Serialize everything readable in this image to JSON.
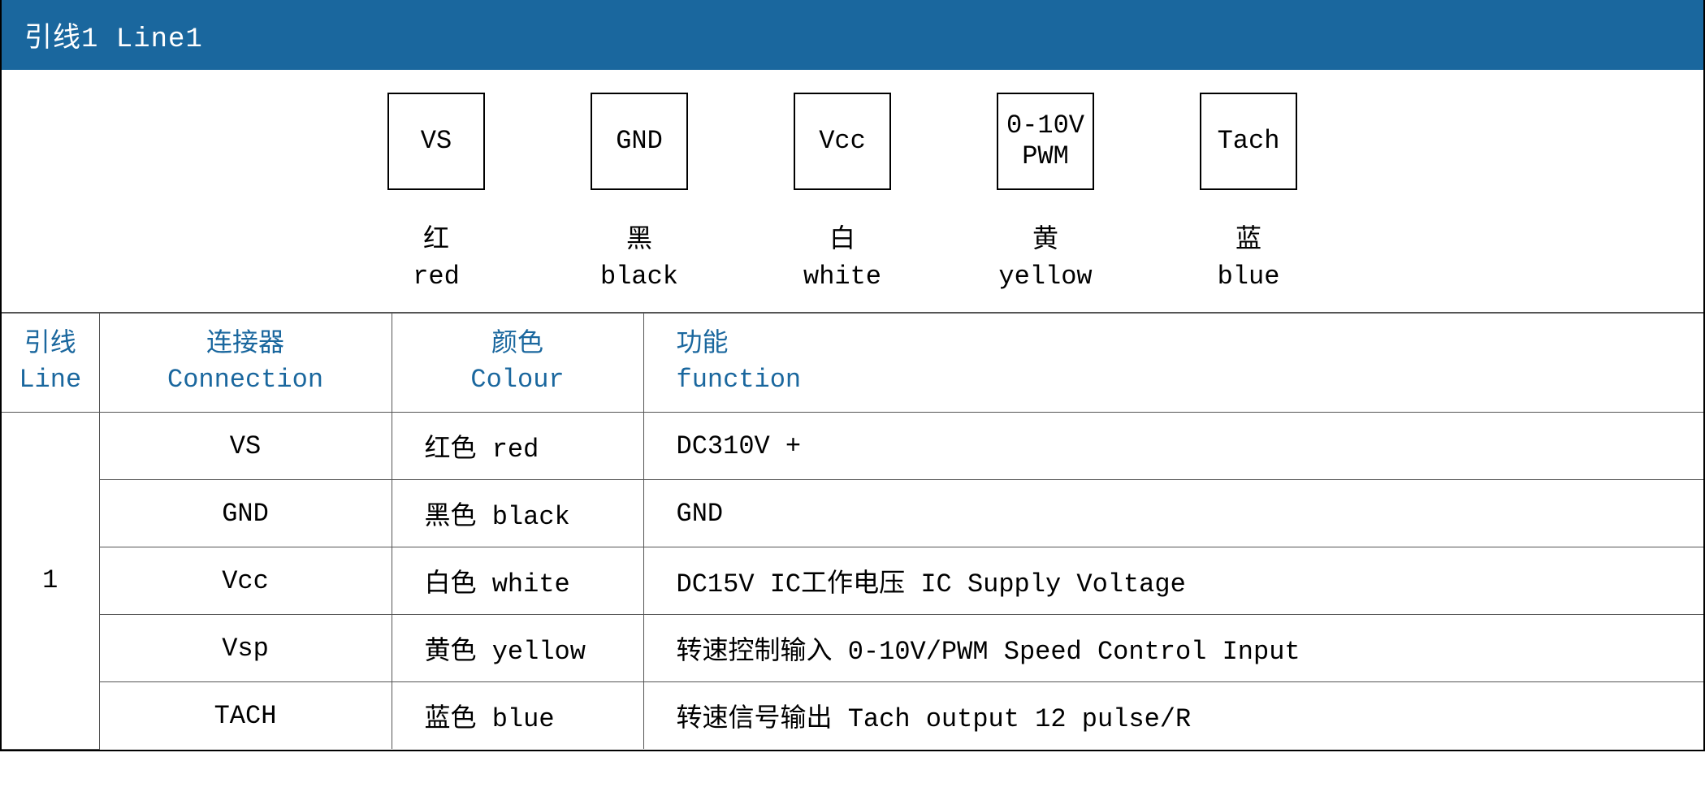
{
  "header": {
    "title": "引线1 Line1"
  },
  "colors": {
    "header_bg": "#1a679e",
    "header_text": "#ffffff",
    "th_text": "#1a679e",
    "border": "#555555"
  },
  "pins": [
    {
      "box": "VS",
      "box2": "",
      "label_cn": "红",
      "label_en": "red"
    },
    {
      "box": "GND",
      "box2": "",
      "label_cn": "黑",
      "label_en": "black"
    },
    {
      "box": "Vcc",
      "box2": "",
      "label_cn": "白",
      "label_en": "white"
    },
    {
      "box": "0-10V",
      "box2": "PWM",
      "label_cn": "黄",
      "label_en": "yellow"
    },
    {
      "box": "Tach",
      "box2": "",
      "label_cn": "蓝",
      "label_en": "blue"
    }
  ],
  "table": {
    "headers": {
      "line_cn": "引线",
      "line_en": "Line",
      "conn_cn": "连接器",
      "conn_en": "Connection",
      "color_cn": "颜色",
      "color_en": "Colour",
      "func_cn": "功能",
      "func_en": "function"
    },
    "line_number": "1",
    "rows": [
      {
        "conn": "VS",
        "color": "红色 red",
        "func": "DC310V +"
      },
      {
        "conn": "GND",
        "color": "黑色 black",
        "func": "GND"
      },
      {
        "conn": "Vcc",
        "color": "白色 white",
        "func": "DC15V  IC工作电压  IC Supply Voltage"
      },
      {
        "conn": "Vsp",
        "color": "黄色 yellow",
        "func": "转速控制输入 0-10V/PWM Speed Control Input"
      },
      {
        "conn": "TACH",
        "color": "蓝色 blue",
        "func": "转速信号输出 Tach output 12 pulse/R"
      }
    ]
  }
}
